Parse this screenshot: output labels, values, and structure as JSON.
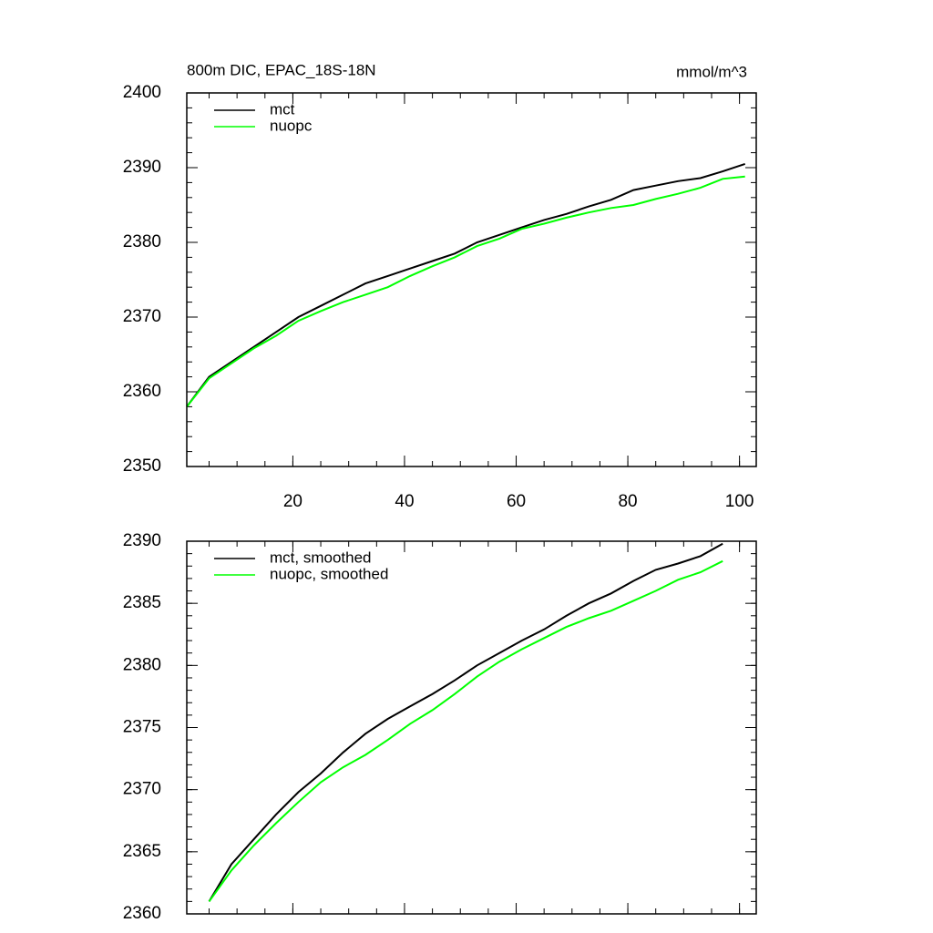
{
  "chart_data": [
    {
      "type": "line",
      "title": "800m DIC, EPAC_18S-18N",
      "units": "mmol/m^3",
      "x": [
        1,
        5,
        9,
        13,
        17,
        21,
        25,
        29,
        33,
        37,
        41,
        45,
        49,
        53,
        57,
        61,
        65,
        69,
        73,
        77,
        81,
        85,
        89,
        93,
        97,
        101
      ],
      "series": [
        {
          "name": "mct",
          "color": "#000000",
          "values": [
            2358,
            2362,
            2364,
            2366,
            2368,
            2370,
            2371.5,
            2373,
            2374.5,
            2375.5,
            2376.5,
            2377.5,
            2378.5,
            2380,
            2381,
            2382,
            2383,
            2383.8,
            2384.8,
            2385.7,
            2387,
            2387.6,
            2388.2,
            2388.6,
            2389.5,
            2390.5
          ]
        },
        {
          "name": "nuopc",
          "color": "#00ff00",
          "values": [
            2358,
            2361.8,
            2363.8,
            2365.8,
            2367.5,
            2369.5,
            2370.8,
            2372,
            2373,
            2374,
            2375.5,
            2376.8,
            2378,
            2379.5,
            2380.5,
            2381.8,
            2382.5,
            2383.3,
            2384,
            2384.6,
            2385,
            2385.8,
            2386.5,
            2387.3,
            2388.5,
            2388.8
          ]
        }
      ],
      "xlim": [
        1,
        103
      ],
      "xticks": [
        20,
        40,
        60,
        80,
        100
      ],
      "xtick_labels": true,
      "xminor": 5,
      "ylim": [
        2350,
        2400
      ],
      "yticks": [
        2350,
        2360,
        2370,
        2380,
        2390,
        2400
      ],
      "yminor": 2,
      "legend": "top-left"
    },
    {
      "type": "line",
      "x": [
        5,
        9,
        13,
        17,
        21,
        25,
        29,
        33,
        37,
        41,
        45,
        49,
        53,
        57,
        61,
        65,
        69,
        73,
        77,
        81,
        85,
        89,
        93,
        97
      ],
      "series": [
        {
          "name": "mct, smoothed",
          "color": "#000000",
          "values": [
            2361,
            2364,
            2366,
            2368,
            2369.8,
            2371.3,
            2373,
            2374.5,
            2375.7,
            2376.7,
            2377.7,
            2378.8,
            2380,
            2381,
            2382,
            2382.9,
            2384,
            2385,
            2385.8,
            2386.8,
            2387.7,
            2388.2,
            2388.8,
            2389.8
          ]
        },
        {
          "name": "nuopc, smoothed",
          "color": "#00ff00",
          "values": [
            2361,
            2363.5,
            2365.5,
            2367.3,
            2369,
            2370.6,
            2371.8,
            2372.8,
            2374,
            2375.3,
            2376.4,
            2377.7,
            2379.1,
            2380.3,
            2381.3,
            2382.2,
            2383.1,
            2383.8,
            2384.4,
            2385.2,
            2386,
            2386.9,
            2387.5,
            2388.4
          ]
        }
      ],
      "xlim": [
        1,
        103
      ],
      "xticks": [
        20,
        40,
        60,
        80,
        100
      ],
      "xtick_labels": false,
      "xminor": 5,
      "ylim": [
        2360,
        2390
      ],
      "yticks": [
        2360,
        2365,
        2370,
        2375,
        2380,
        2385,
        2390
      ],
      "yminor": 1,
      "legend": "top-left"
    }
  ]
}
